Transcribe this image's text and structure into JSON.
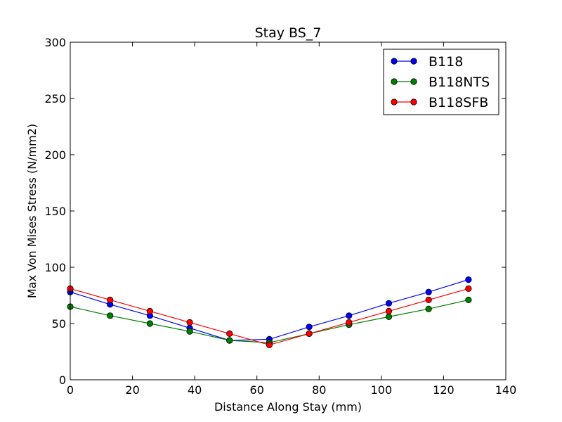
{
  "chart_data": {
    "type": "line",
    "title": "Stay BS_7",
    "xlabel": "Distance Along Stay (mm)",
    "ylabel": "Max Von Mises Stress (N/mm2)",
    "xlim": [
      0,
      140
    ],
    "ylim": [
      0,
      300
    ],
    "xticks": [
      0,
      20,
      40,
      60,
      80,
      100,
      120,
      140
    ],
    "yticks": [
      0,
      50,
      100,
      150,
      200,
      250,
      300
    ],
    "grid": false,
    "legend_position": "top-right",
    "x": [
      0,
      12.8,
      25.6,
      38.4,
      51.2,
      64,
      76.8,
      89.6,
      102.4,
      115.2,
      128
    ],
    "series": [
      {
        "name": "B118",
        "color": "#0000ff",
        "values": [
          78,
          67,
          57,
          46,
          35,
          36,
          47,
          57,
          68,
          78,
          89
        ]
      },
      {
        "name": "B118NTS",
        "color": "#008000",
        "values": [
          65,
          57,
          50,
          43,
          35,
          33,
          41,
          49,
          56,
          63,
          71
        ]
      },
      {
        "name": "B118SFB",
        "color": "#ff0000",
        "values": [
          81,
          71,
          61,
          51,
          41,
          31,
          41,
          51,
          61,
          71,
          81
        ]
      }
    ]
  }
}
